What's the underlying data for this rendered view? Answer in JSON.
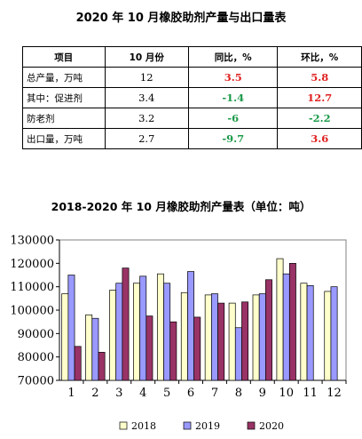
{
  "title": "2020 年 10 月橡胶助剂产量与出口量表",
  "table": {
    "headers": [
      "项目",
      "10 月份",
      "同比，%",
      "环比，%"
    ],
    "rows": [
      {
        "item": "总产量，万吨",
        "value": "12",
        "yoy": "3.5",
        "mom": "5.8",
        "yoy_color": "red",
        "mom_color": "red",
        "indent": false
      },
      {
        "item": "其中：促进剂",
        "value": "3.4",
        "yoy": "-1.4",
        "mom": "12.7",
        "yoy_color": "green",
        "mom_color": "red",
        "indent": false
      },
      {
        "item": "防老剂",
        "value": "3.2",
        "yoy": "-6",
        "mom": "-2.2",
        "yoy_color": "green",
        "mom_color": "green",
        "indent": true
      },
      {
        "item": "出口量，万吨",
        "value": "2.7",
        "yoy": "-9.7",
        "mom": "3.6",
        "yoy_color": "green",
        "mom_color": "red",
        "indent": false
      }
    ]
  },
  "chart_data": {
    "type": "bar",
    "title": "2018-2020 年 10 月橡胶助剂产量表（单位：吨）",
    "categories": [
      "1",
      "2",
      "3",
      "4",
      "5",
      "6",
      "7",
      "8",
      "9",
      "10",
      "11",
      "12"
    ],
    "series": [
      {
        "name": "2018",
        "color": "#ffffcc",
        "values": [
          107000,
          98000,
          108500,
          111500,
          115500,
          107500,
          106500,
          103000,
          106500,
          122000,
          111500,
          108000
        ]
      },
      {
        "name": "2019",
        "color": "#9999ff",
        "values": [
          115000,
          96500,
          111500,
          114500,
          111500,
          116500,
          107000,
          92500,
          107000,
          115500,
          110500,
          110000
        ]
      },
      {
        "name": "2020",
        "color": "#993366",
        "values": [
          84500,
          82000,
          118000,
          97500,
          95000,
          97000,
          103000,
          103500,
          113000,
          120000,
          null,
          null
        ]
      }
    ],
    "yticks": [
      130000,
      120000,
      110000,
      100000,
      90000,
      80000,
      70000
    ],
    "ylim": [
      70000,
      130000
    ],
    "grid": false,
    "legend": "bottom"
  }
}
